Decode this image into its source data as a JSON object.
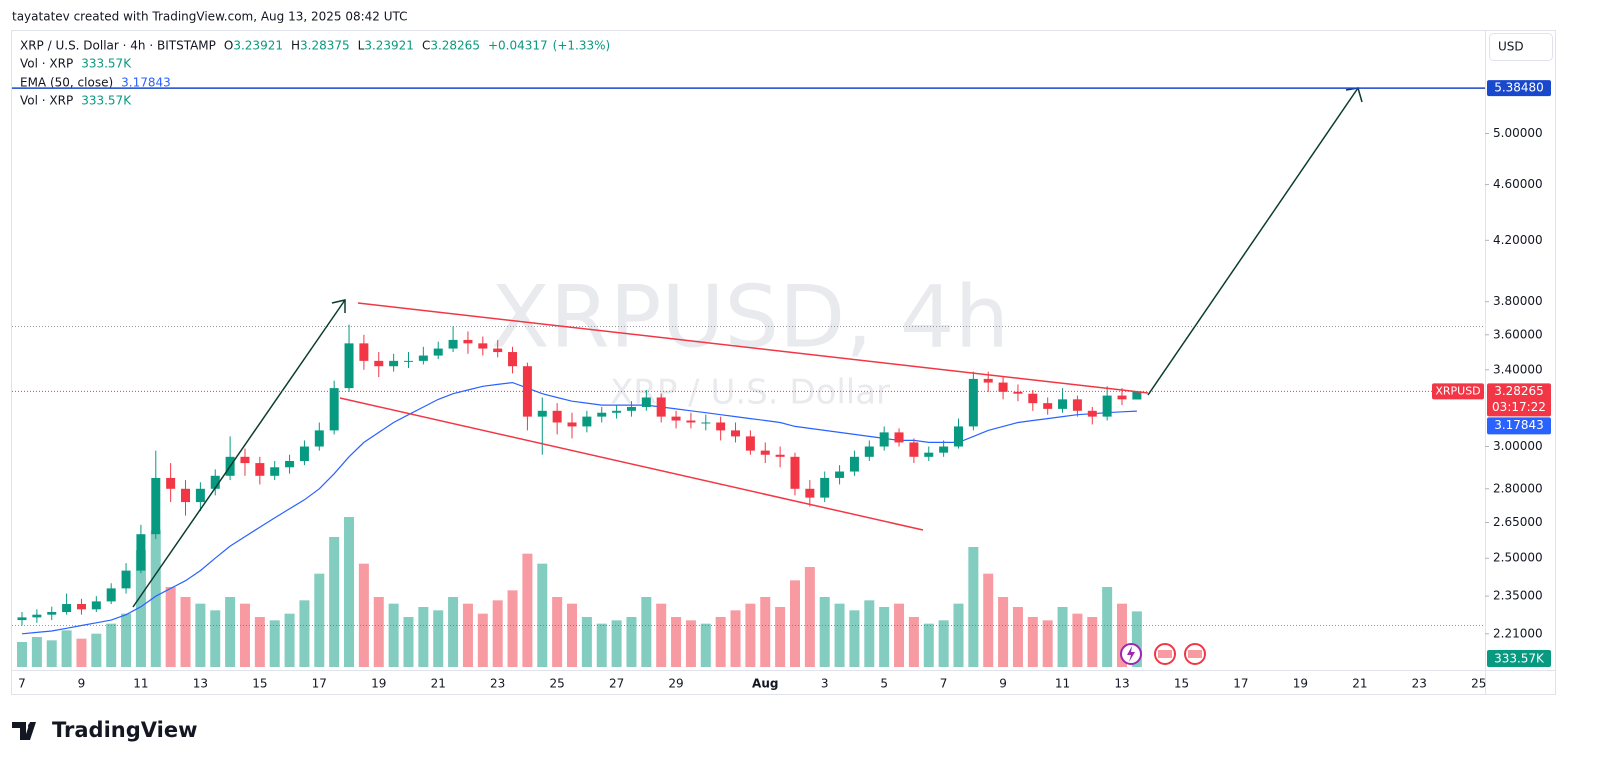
{
  "attribution": "tayatatev created with TradingView.com, Aug 13, 2025 08:42 UTC",
  "legend": {
    "symbol": "XRP / U.S. Dollar · 4h · BITSTAMP",
    "ohlc_letters": [
      "O",
      "H",
      "L",
      "C"
    ],
    "change": {
      "value": 0.04317,
      "label": "+0.04317"
    },
    "change_pct": {
      "value": 1.33,
      "label": "(+1.33%)"
    },
    "vol_name": "Vol · XRP",
    "ema_name": "EMA (50, close)"
  },
  "watermark": {
    "title": "XRPUSD, 4h",
    "subtitle": "XRP / U.S. Dollar"
  },
  "currency": "USD",
  "brand": "TradingView",
  "chart_data": {
    "type": "candlestick",
    "categories": [
      "7",
      null,
      null,
      null,
      "9",
      null,
      null,
      null,
      "11",
      null,
      null,
      null,
      "13",
      null,
      null,
      null,
      "15",
      null,
      null,
      null,
      "17",
      null,
      null,
      null,
      "19",
      null,
      null,
      null,
      "21",
      null,
      null,
      null,
      "23",
      null,
      null,
      null,
      "25",
      null,
      null,
      null,
      "27",
      null,
      null,
      null,
      "29",
      null,
      null,
      null,
      null,
      null,
      "Aug",
      null,
      null,
      null,
      "3",
      null,
      null,
      null,
      "5",
      null,
      null,
      null,
      "7",
      null,
      null,
      null,
      "9",
      null,
      null,
      null,
      "11",
      null,
      null,
      null,
      "13",
      null,
      null,
      null,
      "15",
      null,
      null,
      null,
      "17",
      null,
      null,
      null,
      "19",
      null,
      null,
      null,
      "21",
      null,
      null,
      null,
      "23",
      null,
      null,
      null,
      "25",
      null
    ],
    "ohlc": [
      [
        2.26,
        2.29,
        2.24,
        2.27
      ],
      [
        2.27,
        2.3,
        2.25,
        2.28
      ],
      [
        2.28,
        2.31,
        2.26,
        2.29
      ],
      [
        2.29,
        2.36,
        2.28,
        2.32
      ],
      [
        2.32,
        2.34,
        2.28,
        2.3
      ],
      [
        2.3,
        2.35,
        2.29,
        2.33
      ],
      [
        2.33,
        2.4,
        2.32,
        2.38
      ],
      [
        2.38,
        2.48,
        2.36,
        2.45
      ],
      [
        2.45,
        2.64,
        2.44,
        2.6
      ],
      [
        2.6,
        2.98,
        2.58,
        2.85
      ],
      [
        2.85,
        2.92,
        2.74,
        2.8
      ],
      [
        2.8,
        2.84,
        2.68,
        2.74
      ],
      [
        2.74,
        2.83,
        2.7,
        2.8
      ],
      [
        2.8,
        2.89,
        2.77,
        2.86
      ],
      [
        2.86,
        3.05,
        2.84,
        2.95
      ],
      [
        2.95,
        2.99,
        2.86,
        2.92
      ],
      [
        2.92,
        2.95,
        2.82,
        2.86
      ],
      [
        2.86,
        2.93,
        2.84,
        2.9
      ],
      [
        2.9,
        2.96,
        2.87,
        2.93
      ],
      [
        2.93,
        3.03,
        2.91,
        3.0
      ],
      [
        3.0,
        3.12,
        2.98,
        3.08
      ],
      [
        3.08,
        3.34,
        3.06,
        3.3
      ],
      [
        3.3,
        3.66,
        3.28,
        3.55
      ],
      [
        3.55,
        3.6,
        3.4,
        3.45
      ],
      [
        3.45,
        3.5,
        3.36,
        3.42
      ],
      [
        3.42,
        3.49,
        3.39,
        3.45
      ],
      [
        3.45,
        3.5,
        3.41,
        3.45
      ],
      [
        3.45,
        3.53,
        3.43,
        3.48
      ],
      [
        3.48,
        3.56,
        3.46,
        3.52
      ],
      [
        3.52,
        3.65,
        3.5,
        3.57
      ],
      [
        3.57,
        3.62,
        3.49,
        3.55
      ],
      [
        3.55,
        3.59,
        3.48,
        3.52
      ],
      [
        3.52,
        3.57,
        3.47,
        3.5
      ],
      [
        3.5,
        3.53,
        3.38,
        3.42
      ],
      [
        3.42,
        3.44,
        3.08,
        3.15
      ],
      [
        3.15,
        3.25,
        2.96,
        3.18
      ],
      [
        3.18,
        3.22,
        3.06,
        3.12
      ],
      [
        3.12,
        3.17,
        3.04,
        3.1
      ],
      [
        3.1,
        3.18,
        3.07,
        3.15
      ],
      [
        3.15,
        3.2,
        3.12,
        3.17
      ],
      [
        3.17,
        3.21,
        3.14,
        3.18
      ],
      [
        3.18,
        3.23,
        3.15,
        3.2
      ],
      [
        3.2,
        3.29,
        3.18,
        3.25
      ],
      [
        3.25,
        3.27,
        3.12,
        3.15
      ],
      [
        3.15,
        3.18,
        3.09,
        3.13
      ],
      [
        3.13,
        3.17,
        3.09,
        3.12
      ],
      [
        3.12,
        3.16,
        3.08,
        3.12
      ],
      [
        3.12,
        3.15,
        3.03,
        3.08
      ],
      [
        3.08,
        3.12,
        3.02,
        3.05
      ],
      [
        3.05,
        3.08,
        2.96,
        2.98
      ],
      [
        2.98,
        3.02,
        2.92,
        2.96
      ],
      [
        2.96,
        3.0,
        2.9,
        2.95
      ],
      [
        2.95,
        2.97,
        2.77,
        2.8
      ],
      [
        2.8,
        2.84,
        2.72,
        2.76
      ],
      [
        2.76,
        2.88,
        2.74,
        2.85
      ],
      [
        2.85,
        2.91,
        2.82,
        2.88
      ],
      [
        2.88,
        2.98,
        2.86,
        2.95
      ],
      [
        2.95,
        3.03,
        2.93,
        3.0
      ],
      [
        3.0,
        3.1,
        2.98,
        3.07
      ],
      [
        3.07,
        3.09,
        3.0,
        3.02
      ],
      [
        3.02,
        3.04,
        2.92,
        2.95
      ],
      [
        2.95,
        3.0,
        2.93,
        2.97
      ],
      [
        2.97,
        3.03,
        2.95,
        3.0
      ],
      [
        3.0,
        3.14,
        2.99,
        3.1
      ],
      [
        3.1,
        3.39,
        3.08,
        3.35
      ],
      [
        3.35,
        3.39,
        3.28,
        3.33
      ],
      [
        3.33,
        3.36,
        3.24,
        3.28
      ],
      [
        3.28,
        3.32,
        3.23,
        3.27
      ],
      [
        3.27,
        3.29,
        3.18,
        3.22
      ],
      [
        3.22,
        3.25,
        3.16,
        3.19
      ],
      [
        3.19,
        3.3,
        3.17,
        3.24
      ],
      [
        3.24,
        3.26,
        3.15,
        3.18
      ],
      [
        3.18,
        3.2,
        3.11,
        3.15
      ],
      [
        3.15,
        3.31,
        3.13,
        3.26
      ],
      [
        3.26,
        3.3,
        3.21,
        3.24
      ],
      [
        3.23921,
        3.28375,
        3.23921,
        3.28265
      ],
      null,
      null,
      null,
      null,
      null,
      null,
      null,
      null,
      null,
      null,
      null,
      null,
      null,
      null,
      null,
      null,
      null,
      null,
      null,
      null,
      null,
      null,
      null,
      null
    ],
    "volume": [
      150,
      180,
      160,
      220,
      170,
      200,
      260,
      320,
      700,
      820,
      480,
      420,
      380,
      340,
      420,
      380,
      300,
      280,
      320,
      400,
      560,
      780,
      900,
      620,
      420,
      380,
      300,
      360,
      340,
      420,
      380,
      320,
      400,
      460,
      680,
      620,
      420,
      380,
      300,
      260,
      280,
      300,
      420,
      380,
      300,
      280,
      260,
      300,
      340,
      380,
      420,
      360,
      520,
      600,
      420,
      380,
      340,
      400,
      360,
      380,
      300,
      260,
      280,
      380,
      720,
      560,
      420,
      360,
      300,
      280,
      360,
      320,
      300,
      480,
      380,
      333.57,
      null,
      null,
      null,
      null,
      null,
      null,
      null,
      null,
      null,
      null,
      null,
      null,
      null,
      null,
      null,
      null,
      null,
      null,
      null,
      null,
      null,
      null,
      null,
      null
    ],
    "volume_label": {
      "value": 333.57,
      "label": "333.57K"
    },
    "ema": [
      2.21,
      2.215,
      2.22,
      2.23,
      2.24,
      2.25,
      2.26,
      2.28,
      2.31,
      2.35,
      2.38,
      2.41,
      2.45,
      2.5,
      2.55,
      2.59,
      2.63,
      2.67,
      2.71,
      2.75,
      2.8,
      2.87,
      2.95,
      3.02,
      3.07,
      3.12,
      3.16,
      3.2,
      3.24,
      3.27,
      3.29,
      3.31,
      3.32,
      3.33,
      3.3,
      3.27,
      3.25,
      3.23,
      3.22,
      3.21,
      3.21,
      3.21,
      3.21,
      3.2,
      3.19,
      3.18,
      3.17,
      3.16,
      3.15,
      3.14,
      3.13,
      3.12,
      3.1,
      3.09,
      3.08,
      3.07,
      3.06,
      3.05,
      3.04,
      3.03,
      3.03,
      3.02,
      3.02,
      3.02,
      3.05,
      3.08,
      3.1,
      3.12,
      3.13,
      3.14,
      3.15,
      3.16,
      3.165,
      3.17,
      3.175,
      3.17843,
      null,
      null,
      null,
      null,
      null,
      null,
      null,
      null,
      null,
      null,
      null,
      null,
      null,
      null,
      null,
      null,
      null,
      null,
      null,
      null,
      null,
      null,
      null,
      null
    ],
    "up_color": "#089981",
    "down_color": "#f23645",
    "ema_color": "#2962ff",
    "ylim": [
      2.09,
      5.92
    ],
    "log_scale": true,
    "yticks": [
      {
        "value": 5,
        "label": "5.00000"
      },
      {
        "value": 4.6,
        "label": "4.60000"
      },
      {
        "value": 4.2,
        "label": "4.20000"
      },
      {
        "value": 3.8,
        "label": "3.80000"
      },
      {
        "value": 3.6,
        "label": "3.60000"
      },
      {
        "value": 3.4,
        "label": "3.40000"
      },
      {
        "value": 3,
        "label": "3.00000"
      },
      {
        "value": 2.8,
        "label": "2.80000"
      },
      {
        "value": 2.65,
        "label": "2.65000"
      },
      {
        "value": 2.5,
        "label": "2.50000"
      },
      {
        "value": 2.35,
        "label": "2.35000"
      },
      {
        "value": 2.21,
        "label": "2.21000"
      }
    ],
    "target": {
      "value": 5.3848,
      "label": "5.38480"
    },
    "symbol_tag": "XRPUSD",
    "countdown": "03:17:22"
  }
}
